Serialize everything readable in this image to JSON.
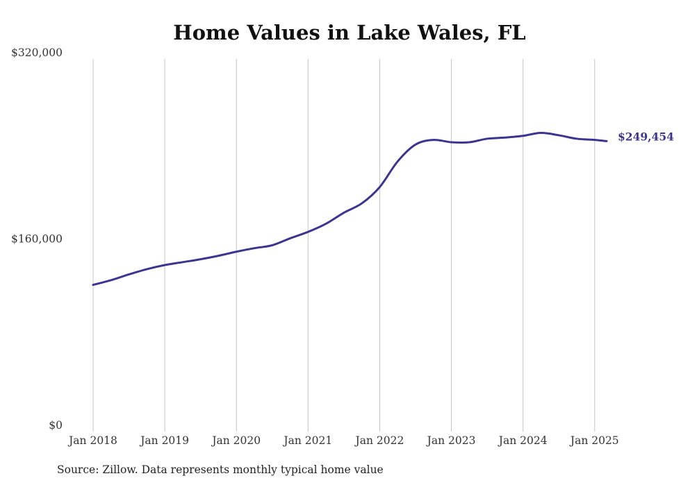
{
  "chart_data": {
    "type": "line",
    "title": "Home Values in Lake Wales, FL",
    "source": "Source: Zillow. Data represents monthly typical home value",
    "xlabel": "",
    "ylabel": "",
    "x_ticks": [
      {
        "label": "Jan 2018",
        "value": 2018.0
      },
      {
        "label": "Jan 2019",
        "value": 2019.0
      },
      {
        "label": "Jan 2020",
        "value": 2020.0
      },
      {
        "label": "Jan 2021",
        "value": 2021.0
      },
      {
        "label": "Jan 2022",
        "value": 2022.0
      },
      {
        "label": "Jan 2023",
        "value": 2023.0
      },
      {
        "label": "Jan 2024",
        "value": 2024.0
      },
      {
        "label": "Jan 2025",
        "value": 2025.0
      }
    ],
    "y_ticks": [
      {
        "label": "$0",
        "value": 0
      },
      {
        "label": "$160,000",
        "value": 160000
      },
      {
        "label": "$320,000",
        "value": 320000
      }
    ],
    "xlim": [
      2018.0,
      2025.167
    ],
    "ylim": [
      0,
      320000
    ],
    "grid": "vertical",
    "line_color": "#3b3590",
    "end_label": "$249,454",
    "series": [
      {
        "points": [
          [
            2018.0,
            126000
          ],
          [
            2018.25,
            130000
          ],
          [
            2018.5,
            135000
          ],
          [
            2018.75,
            139500
          ],
          [
            2019.0,
            143000
          ],
          [
            2019.25,
            145500
          ],
          [
            2019.5,
            148000
          ],
          [
            2019.75,
            151000
          ],
          [
            2020.0,
            154500
          ],
          [
            2020.25,
            157500
          ],
          [
            2020.5,
            160000
          ],
          [
            2020.75,
            166000
          ],
          [
            2021.0,
            171500
          ],
          [
            2021.25,
            178500
          ],
          [
            2021.5,
            188000
          ],
          [
            2021.75,
            196000
          ],
          [
            2022.0,
            210000
          ],
          [
            2022.25,
            232000
          ],
          [
            2022.5,
            246500
          ],
          [
            2022.75,
            250500
          ],
          [
            2023.0,
            248500
          ],
          [
            2023.25,
            248500
          ],
          [
            2023.5,
            251500
          ],
          [
            2023.75,
            252500
          ],
          [
            2024.0,
            254000
          ],
          [
            2024.25,
            256500
          ],
          [
            2024.5,
            254500
          ],
          [
            2024.75,
            251500
          ],
          [
            2025.0,
            250500
          ],
          [
            2025.167,
            249454
          ]
        ]
      }
    ]
  }
}
